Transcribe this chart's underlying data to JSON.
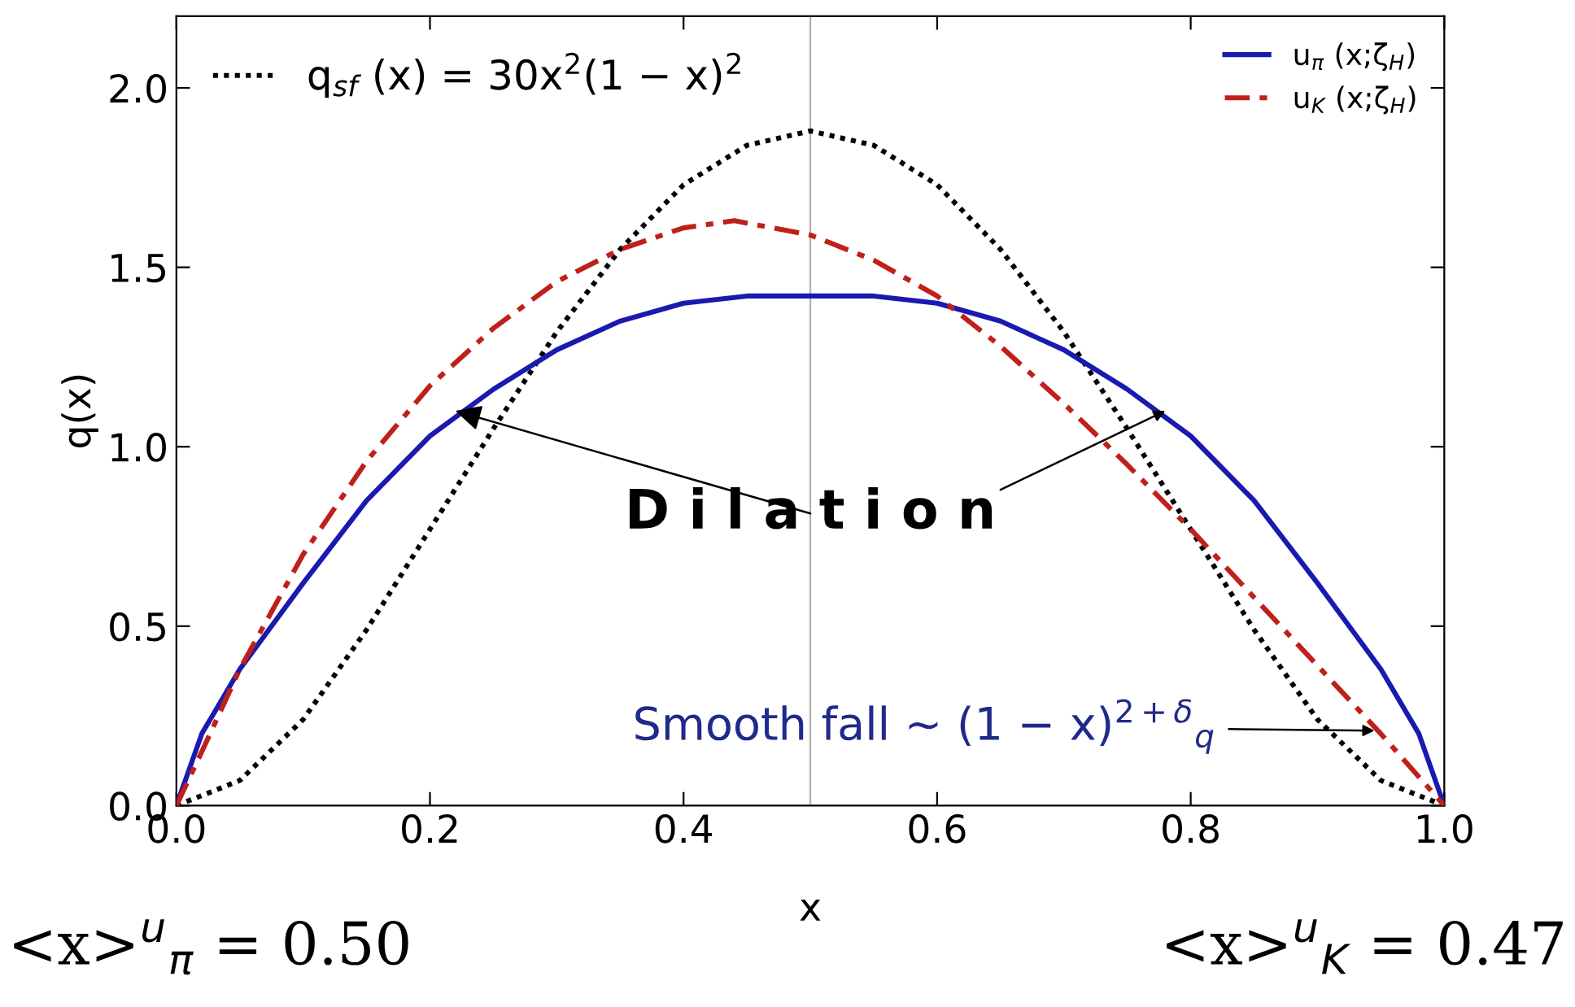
{
  "chart_data": {
    "type": "line",
    "xlabel": "x",
    "ylabel": "q(x)",
    "xlim": [
      0,
      1
    ],
    "ylim": [
      0,
      2.2
    ],
    "xticks": [
      {
        "value": 0,
        "label": "0.0"
      },
      0.2,
      0.4,
      0.6,
      0.8,
      {
        "value": 1,
        "label": "1.0"
      }
    ],
    "yticks": [
      {
        "value": 0,
        "label": "0.0"
      },
      0.5,
      {
        "value": 1,
        "label": "1.0"
      },
      1.5,
      {
        "value": 2,
        "label": "2.0"
      }
    ],
    "grid": false,
    "legend": "top right",
    "series": [
      {
        "name": "q$_{sf}$ (x) = 30x$^{2}$(1 − x)$^{2}$",
        "color": "#000000",
        "line_style": "dotted",
        "x": [
          0,
          0.05,
          0.1,
          0.15,
          0.2,
          0.25,
          0.3,
          0.35,
          0.4,
          0.45,
          0.5,
          0.55,
          0.6,
          0.65,
          0.7,
          0.75,
          0.8,
          0.85,
          0.9,
          0.95,
          1
        ],
        "values": [
          0,
          0.07,
          0.24,
          0.49,
          0.77,
          1.05,
          1.32,
          1.55,
          1.73,
          1.84,
          1.88,
          1.84,
          1.73,
          1.55,
          1.32,
          1.05,
          0.77,
          0.49,
          0.24,
          0.07,
          0
        ]
      },
      {
        "name": "u$_{π}$ (x;ζ$_{H}$)",
        "color": "#1a1ab0",
        "line_style": "solid",
        "x": [
          0,
          0.02,
          0.05,
          0.1,
          0.15,
          0.2,
          0.25,
          0.3,
          0.35,
          0.4,
          0.45,
          0.5,
          0.55,
          0.6,
          0.65,
          0.7,
          0.75,
          0.8,
          0.85,
          0.9,
          0.95,
          0.98,
          1
        ],
        "values": [
          0,
          0.2,
          0.38,
          0.62,
          0.85,
          1.03,
          1.16,
          1.27,
          1.35,
          1.4,
          1.42,
          1.42,
          1.42,
          1.4,
          1.35,
          1.27,
          1.16,
          1.03,
          0.85,
          0.62,
          0.38,
          0.2,
          0
        ]
      },
      {
        "name": "u$_{K}$ (x;ζ$_{H}$)",
        "color": "#c0201a",
        "line_style": "dashed",
        "x": [
          0,
          0.02,
          0.05,
          0.1,
          0.15,
          0.2,
          0.25,
          0.3,
          0.35,
          0.4,
          0.44,
          0.5,
          0.55,
          0.6,
          0.65,
          0.7,
          0.75,
          0.8,
          0.85,
          0.9,
          0.95,
          1
        ],
        "values": [
          0,
          0.15,
          0.38,
          0.7,
          0.96,
          1.17,
          1.33,
          1.46,
          1.55,
          1.61,
          1.63,
          1.59,
          1.52,
          1.42,
          1.28,
          1.12,
          0.95,
          0.77,
          0.58,
          0.39,
          0.2,
          0
        ]
      }
    ],
    "ref_lines": [
      {
        "axis": "x",
        "value": 0.5,
        "color": "#b0b0b0"
      }
    ],
    "annotations": [
      {
        "text": "D i l a t i o n",
        "x": 0.22,
        "y": 1.1
      },
      "Smooth fall ∼ (1 − x)$^{2+δ}$$_{q}$",
      "<x>$^{u}$$_{π}$ = 0.50",
      "<x>$^{u}$$_{K}$ = 0.47"
    ]
  }
}
